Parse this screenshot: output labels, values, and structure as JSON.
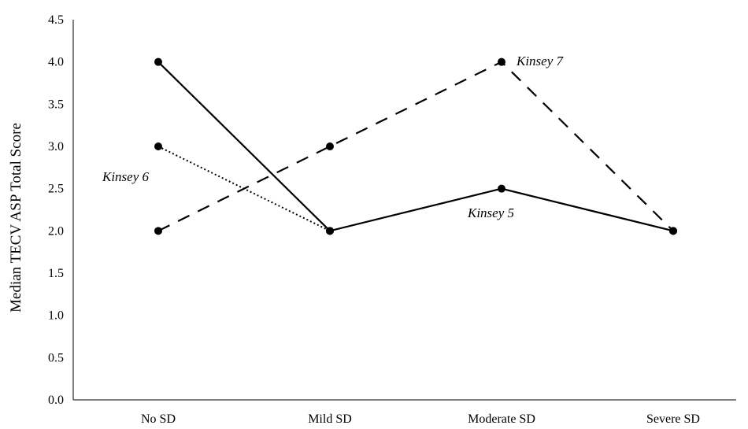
{
  "chart_data": {
    "type": "line",
    "title": "",
    "xlabel": "",
    "ylabel": "Median TECV ASP Total Score",
    "categories": [
      "No SD",
      "Mild SD",
      "Moderate SD",
      "Severe SD"
    ],
    "ylim": [
      0,
      4.5
    ],
    "yticks": [
      "0.0",
      "0.5",
      "1.0",
      "1.5",
      "2.0",
      "2.5",
      "3.0",
      "3.5",
      "4.0",
      "4.5"
    ],
    "grid": false,
    "series": [
      {
        "name": "Kinsey 5",
        "style": "solid",
        "values": [
          4.0,
          2.0,
          2.5,
          2.0
        ]
      },
      {
        "name": "Kinsey 6",
        "style": "dotted",
        "values": [
          3.0,
          2.0,
          null,
          null
        ]
      },
      {
        "name": "Kinsey 7",
        "style": "dashed",
        "values": [
          2.0,
          3.0,
          4.0,
          2.0
        ]
      }
    ],
    "colors": {
      "line": "#000000",
      "axis": "#000000"
    }
  }
}
